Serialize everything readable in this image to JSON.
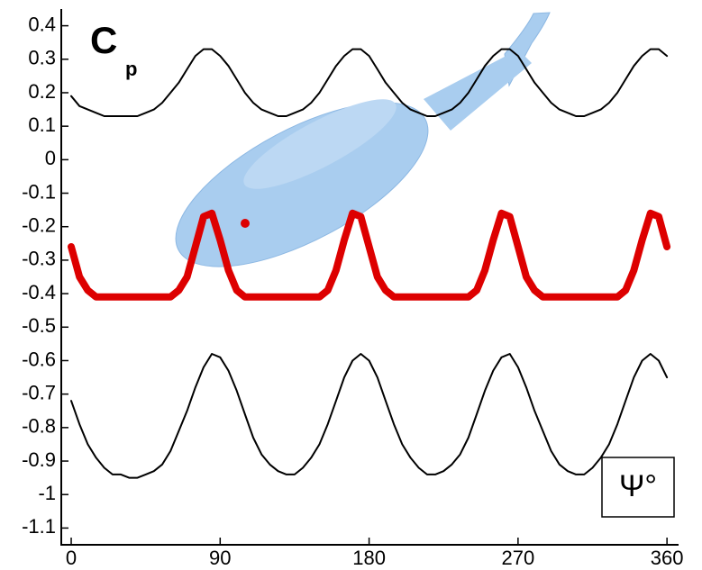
{
  "chart_data": {
    "type": "line",
    "ylabel": {
      "text": "C",
      "subscript": "p"
    },
    "xlabel": "Ψ°",
    "x": [
      0,
      5,
      10,
      15,
      20,
      25,
      30,
      35,
      40,
      45,
      50,
      55,
      60,
      65,
      70,
      75,
      80,
      85,
      90,
      95,
      100,
      105,
      110,
      115,
      120,
      125,
      130,
      135,
      140,
      145,
      150,
      155,
      160,
      165,
      170,
      175,
      180,
      185,
      190,
      195,
      200,
      205,
      210,
      215,
      220,
      225,
      230,
      235,
      240,
      245,
      250,
      255,
      260,
      265,
      270,
      275,
      280,
      285,
      290,
      295,
      300,
      305,
      310,
      315,
      320,
      325,
      330,
      335,
      340,
      345,
      350,
      355,
      360
    ],
    "series": [
      {
        "color": "#000000",
        "width": 2,
        "values": [
          0.19,
          0.16,
          0.15,
          0.14,
          0.13,
          0.13,
          0.13,
          0.13,
          0.13,
          0.14,
          0.15,
          0.17,
          0.2,
          0.23,
          0.27,
          0.31,
          0.33,
          0.33,
          0.31,
          0.28,
          0.24,
          0.2,
          0.17,
          0.15,
          0.14,
          0.13,
          0.13,
          0.14,
          0.15,
          0.17,
          0.2,
          0.24,
          0.28,
          0.31,
          0.33,
          0.33,
          0.31,
          0.27,
          0.23,
          0.2,
          0.17,
          0.15,
          0.14,
          0.13,
          0.13,
          0.14,
          0.15,
          0.17,
          0.2,
          0.24,
          0.28,
          0.31,
          0.33,
          0.33,
          0.31,
          0.27,
          0.23,
          0.2,
          0.17,
          0.15,
          0.14,
          0.13,
          0.13,
          0.14,
          0.15,
          0.17,
          0.2,
          0.24,
          0.28,
          0.31,
          0.33,
          0.33,
          0.31
        ]
      },
      {
        "color": "#dd0000",
        "width": 8,
        "values": [
          -0.26,
          -0.35,
          -0.39,
          -0.41,
          -0.41,
          -0.41,
          -0.41,
          -0.41,
          -0.41,
          -0.41,
          -0.41,
          -0.41,
          -0.41,
          -0.39,
          -0.35,
          -0.26,
          -0.17,
          -0.16,
          -0.24,
          -0.33,
          -0.39,
          -0.41,
          -0.41,
          -0.41,
          -0.41,
          -0.41,
          -0.41,
          -0.41,
          -0.41,
          -0.41,
          -0.41,
          -0.39,
          -0.33,
          -0.24,
          -0.16,
          -0.17,
          -0.26,
          -0.35,
          -0.39,
          -0.41,
          -0.41,
          -0.41,
          -0.41,
          -0.41,
          -0.41,
          -0.41,
          -0.41,
          -0.41,
          -0.41,
          -0.39,
          -0.33,
          -0.24,
          -0.16,
          -0.17,
          -0.26,
          -0.35,
          -0.39,
          -0.41,
          -0.41,
          -0.41,
          -0.41,
          -0.41,
          -0.41,
          -0.41,
          -0.41,
          -0.41,
          -0.41,
          -0.39,
          -0.33,
          -0.24,
          -0.16,
          -0.17,
          -0.26
        ]
      },
      {
        "color": "#000000",
        "width": 2,
        "values": [
          -0.72,
          -0.79,
          -0.85,
          -0.89,
          -0.92,
          -0.94,
          -0.94,
          -0.95,
          -0.95,
          -0.94,
          -0.93,
          -0.91,
          -0.87,
          -0.81,
          -0.75,
          -0.68,
          -0.62,
          -0.58,
          -0.59,
          -0.63,
          -0.69,
          -0.76,
          -0.83,
          -0.88,
          -0.91,
          -0.93,
          -0.94,
          -0.94,
          -0.92,
          -0.89,
          -0.85,
          -0.79,
          -0.72,
          -0.65,
          -0.6,
          -0.58,
          -0.6,
          -0.65,
          -0.72,
          -0.79,
          -0.85,
          -0.89,
          -0.92,
          -0.94,
          -0.94,
          -0.93,
          -0.91,
          -0.88,
          -0.83,
          -0.76,
          -0.69,
          -0.63,
          -0.59,
          -0.58,
          -0.62,
          -0.68,
          -0.75,
          -0.81,
          -0.87,
          -0.91,
          -0.93,
          -0.94,
          -0.94,
          -0.92,
          -0.89,
          -0.85,
          -0.79,
          -0.72,
          -0.65,
          -0.6,
          -0.58,
          -0.6,
          -0.65
        ]
      }
    ],
    "xlim": [
      -6,
      367
    ],
    "xticks": [
      0,
      90,
      180,
      270,
      360
    ],
    "ylim": [
      -1.15,
      0.45
    ],
    "yticks": [
      0.4,
      0.3,
      0.2,
      0.1,
      0,
      -0.1,
      -0.2,
      -0.3,
      -0.4,
      -0.5,
      -0.6,
      -0.7,
      -0.8,
      -0.9,
      -1,
      -1.1
    ]
  }
}
